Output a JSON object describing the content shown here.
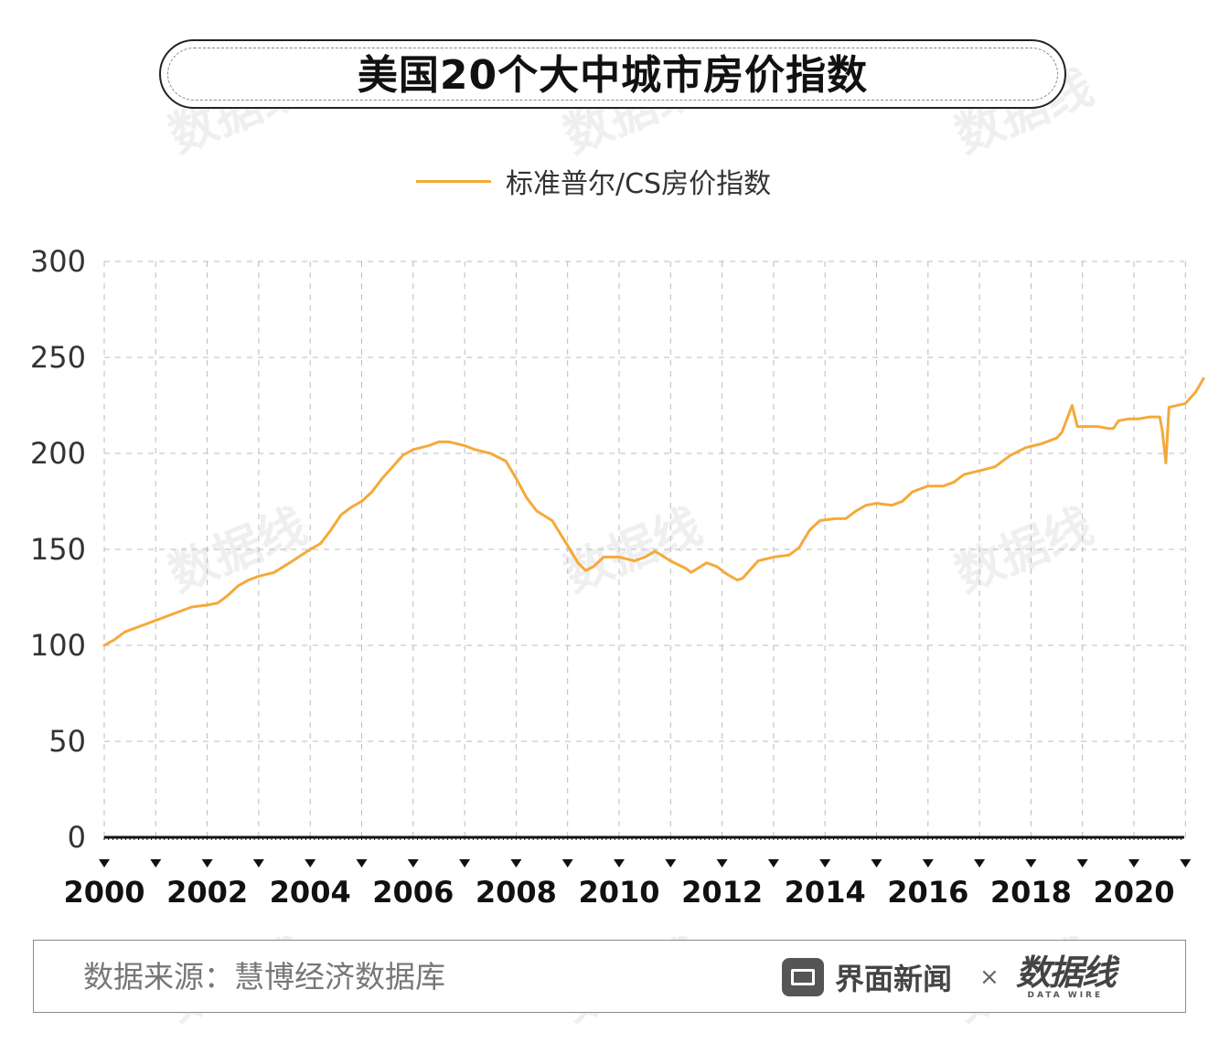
{
  "title": "美国20个大中城市房价指数",
  "legend": {
    "series_label": "标准普尔/CS房价指数"
  },
  "footer": {
    "source": "数据来源：慧博经济数据库",
    "brand_name": "界面新闻",
    "times": "×",
    "partner_logo": "数据线",
    "partner_sub": "DATA WIRE"
  },
  "watermark": "数据线",
  "colors": {
    "line": "#F5A93A",
    "grid": "#bbbbbb",
    "axis": "#111111"
  },
  "chart_data": {
    "type": "line",
    "xlabel": "",
    "ylabel": "",
    "ylim": [
      0,
      300
    ],
    "yticks": [
      0,
      50,
      100,
      150,
      200,
      250,
      300
    ],
    "xlim": [
      2000,
      2021
    ],
    "xtick_labels": [
      "2000",
      "2002",
      "2004",
      "2006",
      "2008",
      "2010",
      "2012",
      "2014",
      "2016",
      "2018",
      "2020"
    ],
    "grid": true,
    "legend_position": "top-center",
    "series": [
      {
        "name": "标准普尔/CS房价指数",
        "color": "#F5A93A",
        "points": [
          [
            2000.0,
            100
          ],
          [
            2000.2,
            103
          ],
          [
            2000.4,
            107
          ],
          [
            2000.7,
            110
          ],
          [
            2001.0,
            113
          ],
          [
            2001.3,
            116
          ],
          [
            2001.7,
            120
          ],
          [
            2002.0,
            121
          ],
          [
            2002.2,
            122
          ],
          [
            2002.4,
            126
          ],
          [
            2002.6,
            131
          ],
          [
            2002.8,
            134
          ],
          [
            2003.0,
            136
          ],
          [
            2003.3,
            138
          ],
          [
            2003.6,
            143
          ],
          [
            2004.0,
            150
          ],
          [
            2004.2,
            153
          ],
          [
            2004.4,
            160
          ],
          [
            2004.6,
            168
          ],
          [
            2004.8,
            172
          ],
          [
            2005.0,
            175
          ],
          [
            2005.2,
            180
          ],
          [
            2005.4,
            187
          ],
          [
            2005.6,
            193
          ],
          [
            2005.8,
            199
          ],
          [
            2006.0,
            202
          ],
          [
            2006.3,
            204
          ],
          [
            2006.5,
            206
          ],
          [
            2006.7,
            206
          ],
          [
            2007.0,
            204
          ],
          [
            2007.2,
            202
          ],
          [
            2007.5,
            200
          ],
          [
            2007.8,
            196
          ],
          [
            2008.0,
            187
          ],
          [
            2008.2,
            177
          ],
          [
            2008.4,
            170
          ],
          [
            2008.7,
            165
          ],
          [
            2009.0,
            152
          ],
          [
            2009.2,
            143
          ],
          [
            2009.35,
            139
          ],
          [
            2009.5,
            141
          ],
          [
            2009.7,
            146
          ],
          [
            2010.0,
            146
          ],
          [
            2010.3,
            144
          ],
          [
            2010.5,
            146
          ],
          [
            2010.7,
            149
          ],
          [
            2011.0,
            144
          ],
          [
            2011.3,
            140
          ],
          [
            2011.4,
            138
          ],
          [
            2011.7,
            143
          ],
          [
            2011.9,
            141
          ],
          [
            2012.1,
            137
          ],
          [
            2012.3,
            134
          ],
          [
            2012.4,
            135
          ],
          [
            2012.7,
            144
          ],
          [
            2013.0,
            146
          ],
          [
            2013.3,
            147
          ],
          [
            2013.5,
            151
          ],
          [
            2013.7,
            160
          ],
          [
            2013.9,
            165
          ],
          [
            2014.2,
            166
          ],
          [
            2014.4,
            166
          ],
          [
            2014.6,
            170
          ],
          [
            2014.8,
            173
          ],
          [
            2015.0,
            174
          ],
          [
            2015.3,
            173
          ],
          [
            2015.5,
            175
          ],
          [
            2015.7,
            180
          ],
          [
            2016.0,
            183
          ],
          [
            2016.3,
            183
          ],
          [
            2016.5,
            185
          ],
          [
            2016.7,
            189
          ],
          [
            2017.0,
            191
          ],
          [
            2017.3,
            193
          ],
          [
            2017.6,
            199
          ],
          [
            2017.9,
            203
          ],
          [
            2018.2,
            205
          ],
          [
            2018.5,
            208
          ],
          [
            2018.6,
            211
          ],
          [
            2018.7,
            218
          ],
          [
            2018.8,
            225
          ],
          [
            2018.9,
            214
          ],
          [
            2019.1,
            214
          ],
          [
            2019.3,
            214
          ],
          [
            2019.5,
            213
          ],
          [
            2019.6,
            213
          ],
          [
            2019.7,
            217
          ],
          [
            2019.9,
            218
          ],
          [
            2020.1,
            218
          ],
          [
            2020.3,
            219
          ],
          [
            2020.5,
            219
          ],
          [
            2020.55,
            212
          ],
          [
            2020.62,
            195
          ],
          [
            2020.68,
            224
          ],
          [
            2021.0,
            226
          ],
          [
            2021.2,
            232
          ],
          [
            2021.35,
            239
          ]
        ]
      }
    ]
  }
}
